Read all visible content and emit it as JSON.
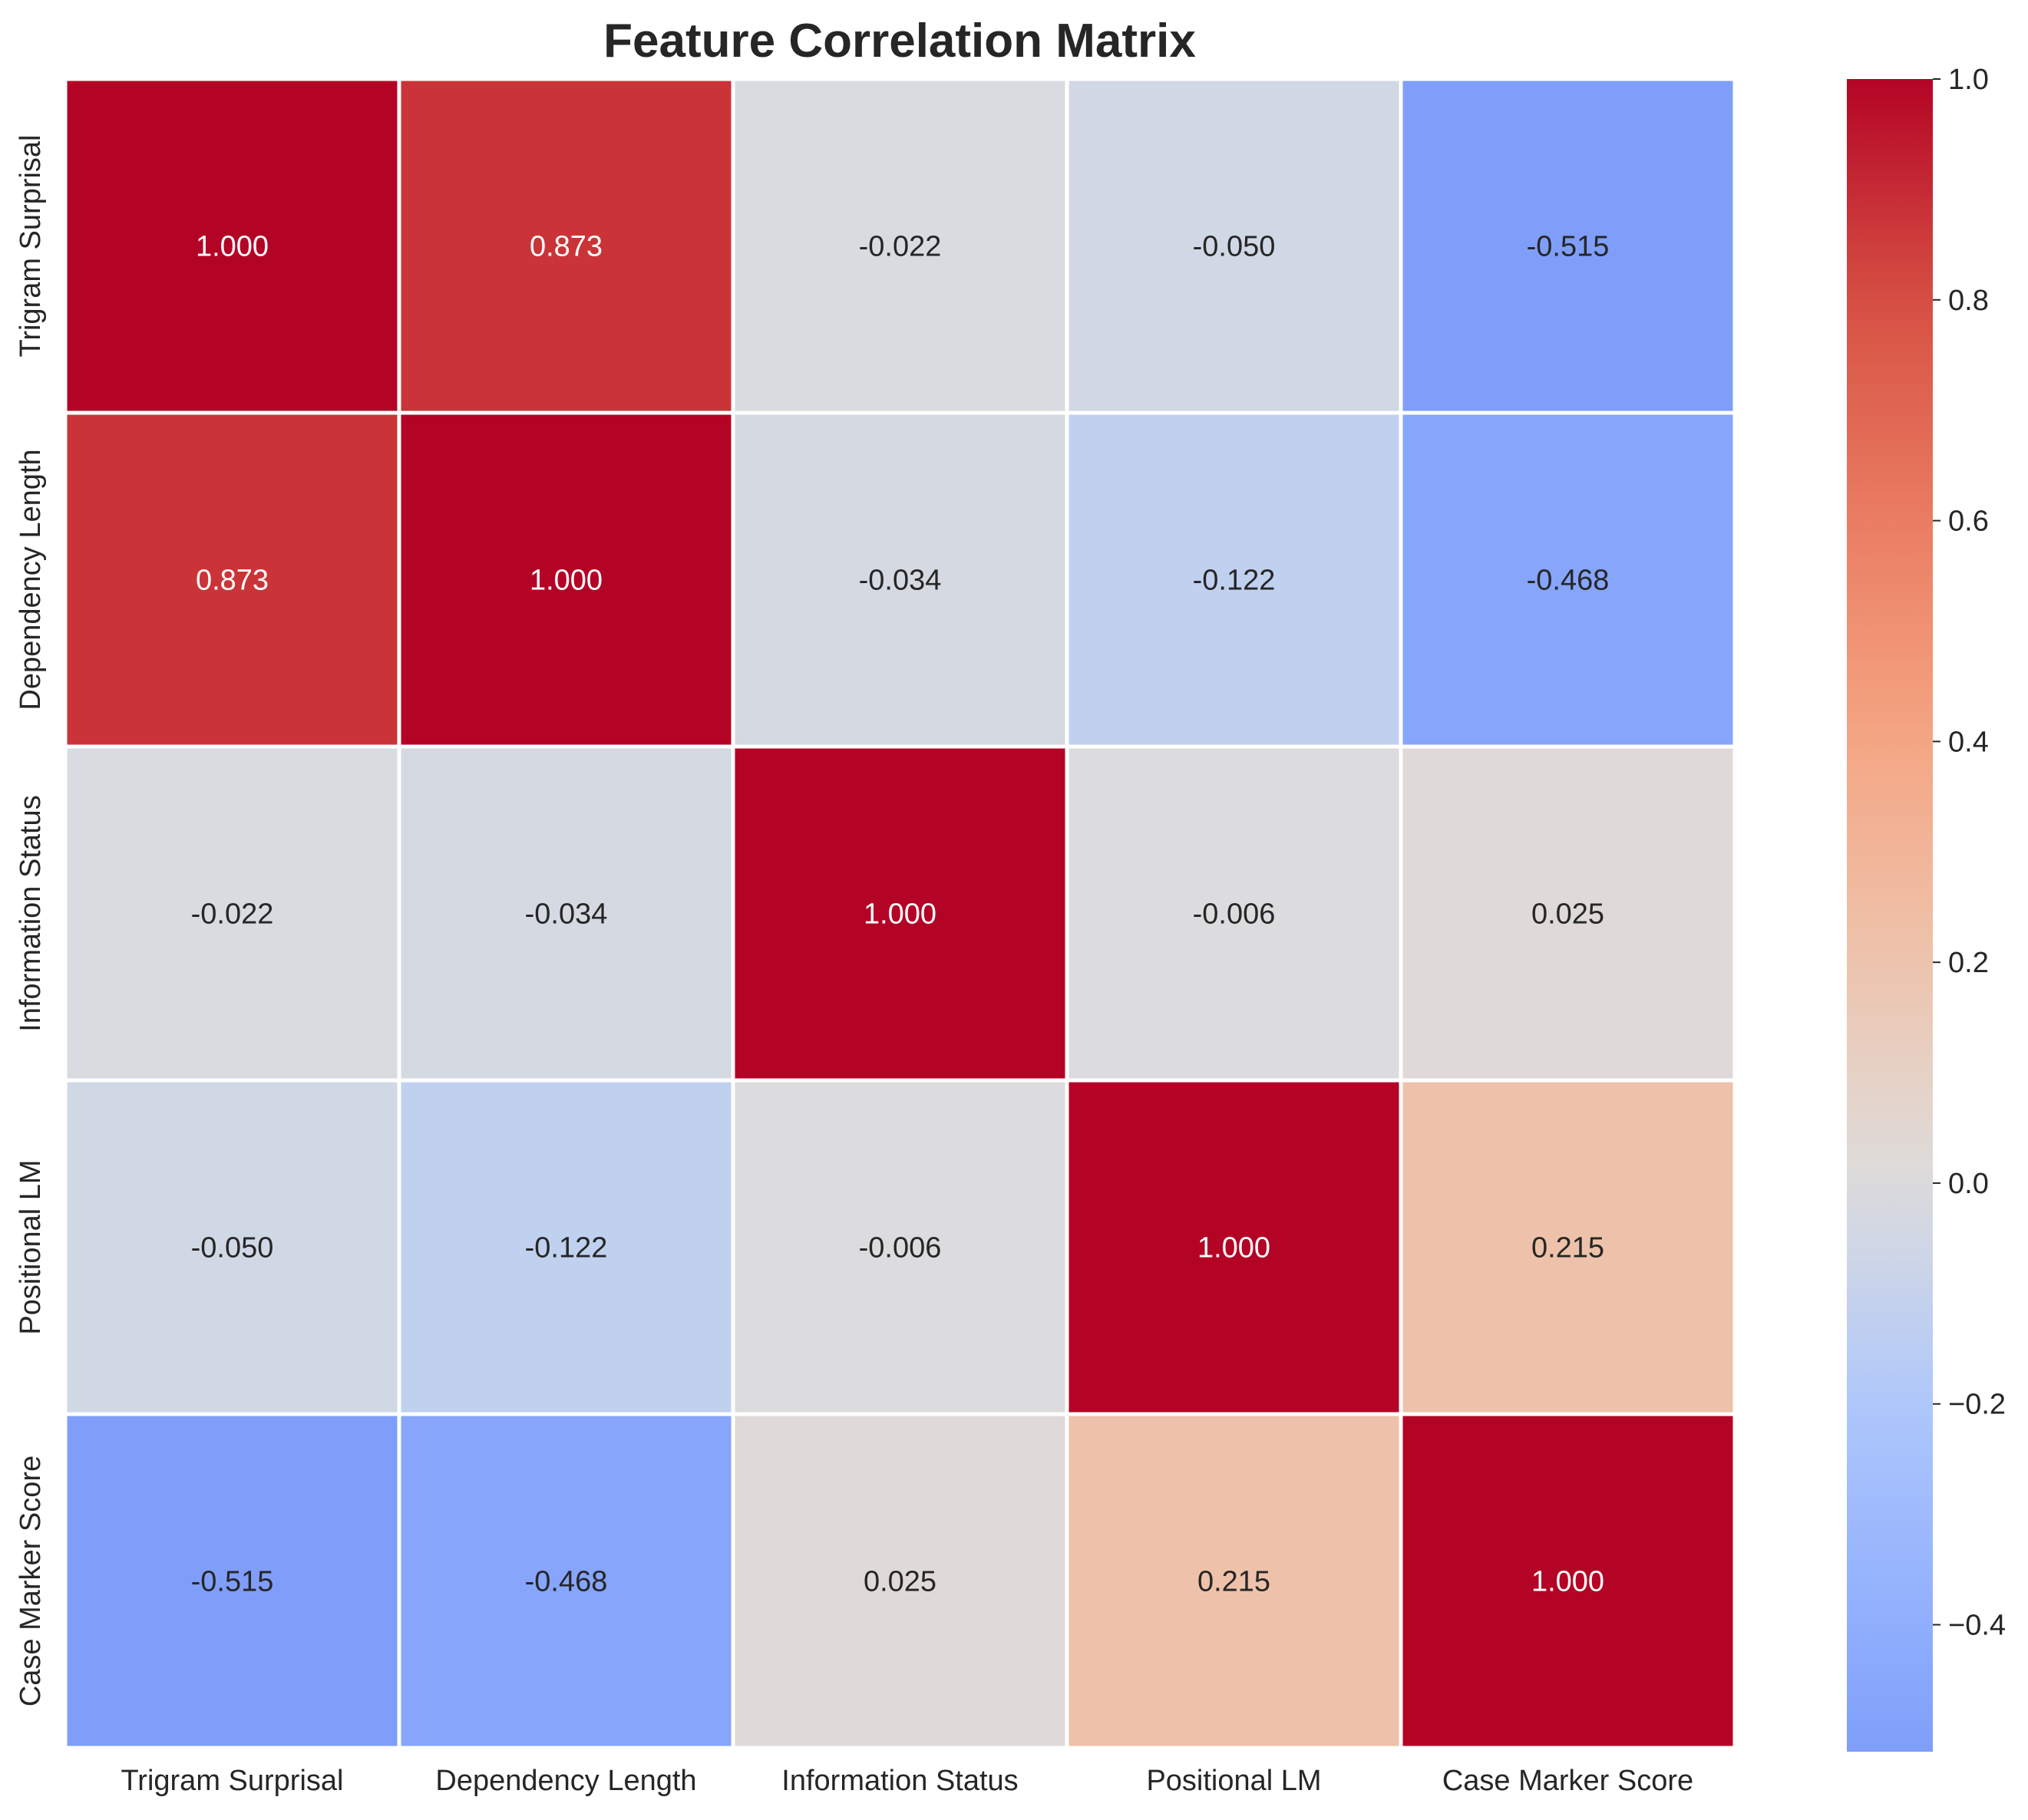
{
  "chart_data": {
    "type": "heatmap",
    "title": "Feature Correlation Matrix",
    "xlabel": "",
    "ylabel": "",
    "x_labels": [
      "Trigram Surprisal",
      "Dependency Length",
      "Information Status",
      "Positional LM",
      "Case Marker Score"
    ],
    "y_labels": [
      "Trigram Surprisal",
      "Dependency Length",
      "Information Status",
      "Positional LM",
      "Case Marker Score"
    ],
    "values": [
      [
        1.0,
        0.873,
        -0.022,
        -0.05,
        -0.515
      ],
      [
        0.873,
        1.0,
        -0.034,
        -0.122,
        -0.468
      ],
      [
        -0.022,
        -0.034,
        1.0,
        -0.006,
        0.025
      ],
      [
        -0.05,
        -0.122,
        -0.006,
        1.0,
        0.215
      ],
      [
        -0.515,
        -0.468,
        0.025,
        0.215,
        1.0
      ]
    ],
    "value_format": "3 decimals",
    "colormap": "coolwarm",
    "center": 0,
    "vmin": -0.515,
    "vmax": 1.0,
    "colorbar_ticks": [
      1.0,
      0.8,
      0.6,
      0.4,
      0.2,
      0.0,
      -0.2,
      -0.4
    ],
    "colorbar_tick_labels": [
      "1.0",
      "0.8",
      "0.6",
      "0.4",
      "0.2",
      "0.0",
      "−0.2",
      "−0.4"
    ],
    "grid": false,
    "cell_divider_color": "#ffffff"
  }
}
